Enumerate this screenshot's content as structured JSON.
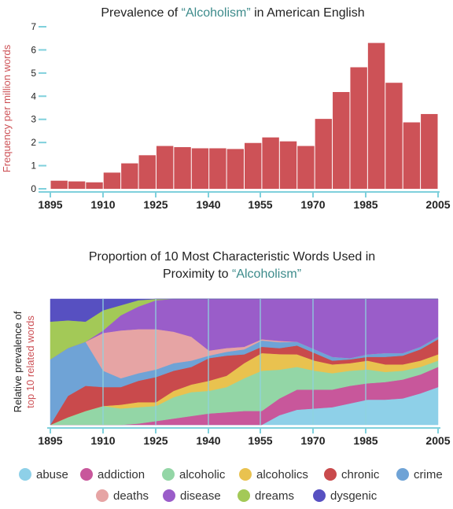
{
  "colors": {
    "bar": "#cd5257",
    "axis_tick": "#7fd0dc",
    "highlight": "#3d8b8b",
    "ylabel": "#cd5257",
    "gridline": "#8fd3df"
  },
  "chart_data": [
    {
      "type": "bar",
      "title": {
        "prefix": "Prevalence of ",
        "highlight": "“Alcoholism”",
        "suffix": " in American English"
      },
      "ylabel": "Frequency per million words",
      "xlabel": "",
      "categories": [
        "1895",
        "1900",
        "1905",
        "1910",
        "1915",
        "1920",
        "1925",
        "1930",
        "1935",
        "1940",
        "1945",
        "1950",
        "1955",
        "1960",
        "1965",
        "1970",
        "1975",
        "1980",
        "1985",
        "1990",
        "1995",
        "2000"
      ],
      "values": [
        0.35,
        0.32,
        0.28,
        0.7,
        1.1,
        1.45,
        1.85,
        1.8,
        1.75,
        1.75,
        1.72,
        1.98,
        2.22,
        2.05,
        1.85,
        3.02,
        4.18,
        5.25,
        6.3,
        4.58,
        2.87,
        3.23
      ],
      "yticks": [
        "0",
        "1",
        "2",
        "3",
        "4",
        "5",
        "6",
        "7"
      ],
      "ylim": [
        0,
        7
      ],
      "xticks": [
        "1895",
        "1910",
        "1925",
        "1940",
        "1955",
        "1970",
        "1985",
        "2005"
      ]
    },
    {
      "type": "area",
      "stacked": "normalized",
      "title": {
        "line1": "Proportion of 10 Most Characteristic Words Used in",
        "line2_prefix": "Proximity to ",
        "line2_highlight": "“Alcoholism”"
      },
      "ylabel_line1": "Relative prevalence of",
      "ylabel_line2": "top 10 related words",
      "x": [
        1895,
        1900,
        1905,
        1910,
        1915,
        1920,
        1925,
        1930,
        1935,
        1940,
        1945,
        1950,
        1955,
        1960,
        1965,
        1970,
        1975,
        1980,
        1985,
        1990,
        1995,
        2000,
        2005
      ],
      "xticks": [
        "1895",
        "1910",
        "1925",
        "1940",
        "1955",
        "1970",
        "1985",
        "2005"
      ],
      "series": [
        {
          "name": "abuse",
          "color": "#8ed0e8",
          "values": [
            0,
            0,
            0,
            0,
            0,
            0,
            0,
            0,
            0,
            0,
            0,
            0,
            0,
            0.08,
            0.12,
            0.13,
            0.14,
            0.17,
            0.2,
            0.2,
            0.21,
            0.25,
            0.3
          ]
        },
        {
          "name": "addiction",
          "color": "#c8579b",
          "values": [
            0,
            0,
            0,
            0,
            0,
            0.01,
            0.03,
            0.05,
            0.07,
            0.09,
            0.1,
            0.11,
            0.11,
            0.14,
            0.16,
            0.15,
            0.14,
            0.14,
            0.13,
            0.14,
            0.15,
            0.15,
            0.16
          ]
        },
        {
          "name": "alcoholic",
          "color": "#93d6a6",
          "values": [
            0,
            0.06,
            0.11,
            0.15,
            0.13,
            0.13,
            0.12,
            0.17,
            0.19,
            0.18,
            0.2,
            0.26,
            0.32,
            0.24,
            0.18,
            0.15,
            0.13,
            0.12,
            0.11,
            0.08,
            0.07,
            0.06,
            0.05
          ]
        },
        {
          "name": "alcoholics",
          "color": "#e9c24f",
          "values": [
            0,
            0,
            0,
            0,
            0.03,
            0.04,
            0.03,
            0.05,
            0.06,
            0.08,
            0.09,
            0.12,
            0.14,
            0.13,
            0.1,
            0.08,
            0.07,
            0.06,
            0.07,
            0.06,
            0.05,
            0.05,
            0.05
          ]
        },
        {
          "name": "chronic",
          "color": "#c94a4c",
          "values": [
            0,
            0.17,
            0.2,
            0.15,
            0.14,
            0.17,
            0.2,
            0.16,
            0.14,
            0.18,
            0.16,
            0.07,
            0.05,
            0.05,
            0.07,
            0.06,
            0.03,
            0.03,
            0.03,
            0.06,
            0.07,
            0.09,
            0.12
          ]
        },
        {
          "name": "crime",
          "color": "#6fa3d6",
          "values": [
            0.52,
            0.38,
            0.35,
            0.13,
            0.07,
            0.06,
            0.06,
            0.06,
            0.05,
            0.02,
            0.03,
            0.04,
            0.05,
            0.05,
            0.03,
            0.03,
            0.03,
            0.01,
            0.02,
            0.03,
            0.02,
            0.02,
            0.02
          ]
        },
        {
          "name": "deaths",
          "color": "#e6a4a4",
          "values": [
            0,
            0,
            0,
            0.3,
            0.38,
            0.35,
            0.32,
            0.25,
            0.19,
            0.04,
            0.03,
            0.02,
            0.01,
            0.01,
            0,
            0,
            0,
            0,
            0,
            0,
            0,
            0,
            0
          ]
        },
        {
          "name": "disease",
          "color": "#9a5dc9",
          "values": [
            0,
            0,
            0,
            0.02,
            0.12,
            0.18,
            0.23,
            0.26,
            0.3,
            0.41,
            0.39,
            0.38,
            0.32,
            0.35,
            0.34,
            0.4,
            0.46,
            0.47,
            0.44,
            0.43,
            0.43,
            0.38,
            0.3
          ]
        },
        {
          "name": "dreams",
          "color": "#a3c957",
          "values": [
            0.3,
            0.22,
            0.16,
            0.16,
            0.08,
            0.05,
            0.01,
            0,
            0,
            0,
            0,
            0,
            0,
            0,
            0,
            0,
            0,
            0,
            0,
            0,
            0,
            0,
            0
          ]
        },
        {
          "name": "dysgenic",
          "color": "#5750c1",
          "values": [
            0.18,
            0.17,
            0.18,
            0.09,
            0.05,
            0.01,
            0,
            0,
            0,
            0,
            0,
            0,
            0,
            0,
            0,
            0,
            0,
            0,
            0,
            0,
            0,
            0,
            0
          ]
        }
      ]
    }
  ]
}
